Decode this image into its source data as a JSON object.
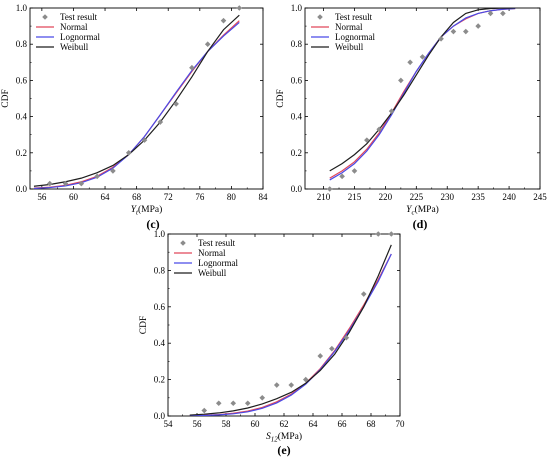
{
  "colors": {
    "test": "#8c8c8c",
    "normal": "#e0475b",
    "lognormal": "#4a4ae6",
    "weibull": "#1e1e1e"
  },
  "chart_data": [
    {
      "type": "line",
      "panel_label": "(c)",
      "xlabel": "Y_t(MPa)",
      "xlabel_main": "Y",
      "xlabel_sub": "t",
      "xlabel_unit": "(MPa)",
      "ylabel": "CDF",
      "xlim": [
        54.5,
        84
      ],
      "ylim": [
        0,
        1.0
      ],
      "xticks": [
        56,
        60,
        64,
        68,
        72,
        76,
        80,
        84
      ],
      "yticks": [
        0.0,
        0.2,
        0.4,
        0.6,
        0.8,
        1.0
      ],
      "legend": {
        "position": "top-left",
        "entries": [
          "Test result",
          "Normal",
          "Lognormal",
          "Weibull"
        ]
      },
      "series": [
        {
          "name": "Test result",
          "kind": "scatter",
          "x": [
            57,
            59,
            61,
            63,
            65,
            67,
            69,
            71,
            73,
            75,
            77,
            79,
            81
          ],
          "y": [
            0.03,
            0.03,
            0.03,
            0.07,
            0.1,
            0.2,
            0.27,
            0.37,
            0.47,
            0.67,
            0.8,
            0.93,
            1.0
          ]
        },
        {
          "name": "Normal",
          "kind": "curve",
          "x": [
            55,
            57,
            59,
            61,
            63,
            65,
            67,
            69,
            71,
            73,
            75,
            77,
            79,
            81
          ],
          "y": [
            0.005,
            0.01,
            0.02,
            0.04,
            0.07,
            0.12,
            0.19,
            0.29,
            0.41,
            0.53,
            0.65,
            0.76,
            0.85,
            0.93
          ]
        },
        {
          "name": "Lognormal",
          "kind": "curve",
          "x": [
            55,
            57,
            59,
            61,
            63,
            65,
            67,
            69,
            71,
            73,
            75,
            77,
            79,
            81
          ],
          "y": [
            0.003,
            0.008,
            0.017,
            0.035,
            0.065,
            0.115,
            0.19,
            0.29,
            0.41,
            0.535,
            0.655,
            0.76,
            0.845,
            0.92
          ]
        },
        {
          "name": "Weibull",
          "kind": "curve",
          "x": [
            55,
            57,
            59,
            61,
            63,
            65,
            67,
            69,
            71,
            73,
            75,
            77,
            79,
            81
          ],
          "y": [
            0.015,
            0.025,
            0.04,
            0.06,
            0.09,
            0.13,
            0.19,
            0.27,
            0.37,
            0.49,
            0.62,
            0.76,
            0.88,
            0.96
          ]
        }
      ]
    },
    {
      "type": "line",
      "panel_label": "(d)",
      "xlabel": "Y_c(MPa)",
      "xlabel_main": "Y",
      "xlabel_sub": "c",
      "xlabel_unit": "(MPa)",
      "ylabel": "CDF",
      "xlim": [
        207,
        245
      ],
      "ylim": [
        0,
        1.0
      ],
      "xticks": [
        210,
        215,
        220,
        225,
        230,
        235,
        240,
        245
      ],
      "yticks": [
        0.0,
        0.2,
        0.4,
        0.6,
        0.8,
        1.0
      ],
      "legend": {
        "position": "top-left",
        "entries": [
          "Test result",
          "Normal",
          "Lognormal",
          "Weibull"
        ]
      },
      "series": [
        {
          "name": "Test result",
          "kind": "scatter",
          "x": [
            211,
            213,
            215,
            217,
            219,
            221,
            222.5,
            224,
            226,
            229,
            231,
            233,
            235,
            237,
            239
          ],
          "y": [
            0.0,
            0.07,
            0.1,
            0.27,
            0.33,
            0.43,
            0.6,
            0.7,
            0.73,
            0.83,
            0.87,
            0.87,
            0.9,
            0.97,
            0.97
          ]
        },
        {
          "name": "Normal",
          "kind": "curve",
          "x": [
            211,
            213,
            215,
            217,
            219,
            221,
            223,
            225,
            227,
            229,
            231,
            233,
            235,
            237,
            239,
            241
          ],
          "y": [
            0.06,
            0.1,
            0.15,
            0.22,
            0.31,
            0.42,
            0.54,
            0.65,
            0.75,
            0.84,
            0.9,
            0.94,
            0.97,
            0.985,
            0.993,
            0.997
          ]
        },
        {
          "name": "Lognormal",
          "kind": "curve",
          "x": [
            211,
            213,
            215,
            217,
            219,
            221,
            223,
            225,
            227,
            229,
            231,
            233,
            235,
            237,
            239,
            241
          ],
          "y": [
            0.05,
            0.09,
            0.14,
            0.21,
            0.3,
            0.41,
            0.53,
            0.65,
            0.75,
            0.84,
            0.9,
            0.945,
            0.97,
            0.985,
            0.993,
            0.997
          ]
        },
        {
          "name": "Weibull",
          "kind": "curve",
          "x": [
            211,
            213,
            215,
            217,
            219,
            221,
            223,
            225,
            227,
            229,
            231,
            233,
            235,
            237,
            239,
            241
          ],
          "y": [
            0.1,
            0.14,
            0.19,
            0.25,
            0.33,
            0.42,
            0.52,
            0.63,
            0.74,
            0.84,
            0.92,
            0.97,
            0.99,
            0.997,
            0.999,
            1.0
          ]
        }
      ]
    },
    {
      "type": "line",
      "panel_label": "(e)",
      "xlabel": "S_12(MPa)",
      "xlabel_main": "S",
      "xlabel_sub": "12",
      "xlabel_unit": "(MPa)",
      "ylabel": "CDF",
      "xlim": [
        54,
        70
      ],
      "ylim": [
        0,
        1.0
      ],
      "xticks": [
        54,
        56,
        58,
        60,
        62,
        64,
        66,
        68,
        70
      ],
      "yticks": [
        0.0,
        0.2,
        0.4,
        0.6,
        0.8,
        1.0
      ],
      "legend": {
        "position": "top-left",
        "entries": [
          "Test result",
          "Normal",
          "Lognormal",
          "Weibull"
        ]
      },
      "series": [
        {
          "name": "Test result",
          "kind": "scatter",
          "x": [
            56.5,
            57.5,
            58.5,
            59.5,
            60.5,
            61.5,
            62.5,
            63.5,
            64.5,
            65.3,
            66.3,
            67.5,
            68.5,
            69.4
          ],
          "y": [
            0.03,
            0.07,
            0.07,
            0.07,
            0.1,
            0.17,
            0.17,
            0.2,
            0.33,
            0.37,
            0.43,
            0.67,
            1.0,
            1.0
          ]
        },
        {
          "name": "Normal",
          "kind": "curve",
          "x": [
            55.5,
            56.5,
            57.5,
            58.5,
            59.5,
            60.5,
            61.5,
            62.5,
            63.5,
            64.5,
            65.5,
            66.5,
            67.5,
            68.5,
            69.4
          ],
          "y": [
            0.002,
            0.004,
            0.008,
            0.015,
            0.027,
            0.047,
            0.078,
            0.12,
            0.18,
            0.26,
            0.36,
            0.48,
            0.61,
            0.75,
            0.89
          ]
        },
        {
          "name": "Lognormal",
          "kind": "curve",
          "x": [
            55.5,
            56.5,
            57.5,
            58.5,
            59.5,
            60.5,
            61.5,
            62.5,
            63.5,
            64.5,
            65.5,
            66.5,
            67.5,
            68.5,
            69.4
          ],
          "y": [
            0.001,
            0.003,
            0.006,
            0.012,
            0.023,
            0.042,
            0.072,
            0.115,
            0.175,
            0.255,
            0.355,
            0.47,
            0.6,
            0.74,
            0.89
          ]
        },
        {
          "name": "Weibull",
          "kind": "curve",
          "x": [
            55.5,
            56.5,
            57.5,
            58.5,
            59.5,
            60.5,
            61.5,
            62.5,
            63.5,
            64.5,
            65.5,
            66.5,
            67.5,
            68.5,
            69.4
          ],
          "y": [
            0.005,
            0.01,
            0.017,
            0.028,
            0.044,
            0.066,
            0.095,
            0.13,
            0.18,
            0.25,
            0.34,
            0.46,
            0.6,
            0.77,
            0.94
          ]
        }
      ]
    }
  ]
}
